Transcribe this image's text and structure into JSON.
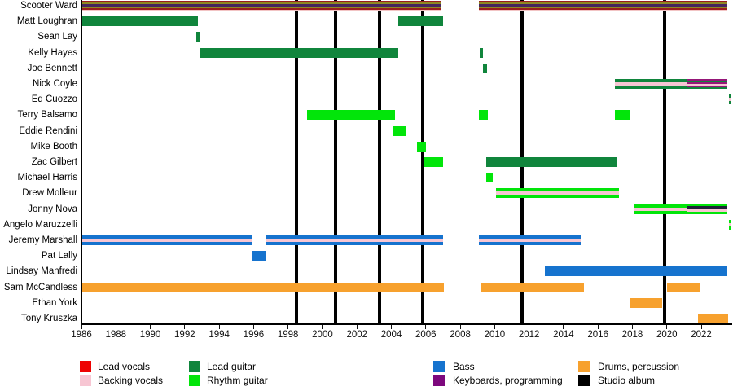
{
  "chart_data": {
    "type": "bar",
    "subtype": "gantt-band-member-timeline",
    "title": "",
    "x_axis": {
      "min": 1986,
      "max": 2023.8,
      "ticks": [
        1986,
        1988,
        1990,
        1992,
        1994,
        1996,
        1998,
        2000,
        2002,
        2004,
        2006,
        2008,
        2010,
        2012,
        2014,
        2016,
        2018,
        2020,
        2022
      ],
      "grid": false
    },
    "colors": {
      "lead_vocals": "#ee0202",
      "backing_vocals": "#f7c6d3",
      "lead_guitar": "#10853c",
      "rhythm_guitar": "#02e50a",
      "bass": "#1673ce",
      "keyboards": "#7d087d",
      "drums": "#f7a12e",
      "studio_album": "#000000",
      "scooter_dark_red": "#9b1e1e",
      "scooter_olive": "#8e8a21",
      "scooter_purple": "#46265e",
      "scooter_pink": "#f2c4c4",
      "keys_magenta": "#951678",
      "keys_dark": "#1d2336"
    },
    "patterns": {
      "lead_vocals_multi": [
        [
          "scooter_dark_red",
          2
        ],
        [
          "scooter_olive",
          2
        ],
        [
          "scooter_purple",
          3
        ],
        [
          "scooter_olive",
          2
        ],
        [
          "scooter_dark_red",
          2
        ],
        [
          "scooter_pink",
          2
        ]
      ],
      "lead_guitar": [
        [
          "lead_guitar",
          12
        ]
      ],
      "rhythm_guitar": [
        [
          "rhythm_guitar",
          12
        ]
      ],
      "lead_guitar_backing": [
        [
          "lead_guitar",
          4
        ],
        [
          "backing_vocals",
          4
        ],
        [
          "lead_guitar",
          4
        ]
      ],
      "lead_guitar_backing_keys": [
        [
          "keys_magenta",
          2
        ],
        [
          "lead_guitar",
          2
        ],
        [
          "keys_magenta",
          2
        ],
        [
          "backing_vocals",
          3
        ],
        [
          "keys_magenta",
          1
        ],
        [
          "lead_guitar",
          2
        ]
      ],
      "rhythm_guitar_backing": [
        [
          "rhythm_guitar",
          4
        ],
        [
          "backing_vocals",
          4
        ],
        [
          "rhythm_guitar",
          4
        ]
      ],
      "rhythm_guitar_backing_keys": [
        [
          "rhythm_guitar",
          2
        ],
        [
          "keys_dark",
          3
        ],
        [
          "backing_vocals",
          4
        ],
        [
          "rhythm_guitar",
          3
        ]
      ],
      "bass": [
        [
          "bass",
          12
        ]
      ],
      "bass_backing": [
        [
          "bass",
          4
        ],
        [
          "backing_vocals",
          4
        ],
        [
          "bass",
          4
        ]
      ],
      "drums": [
        [
          "drums",
          12
        ]
      ]
    },
    "legend": [
      {
        "label": "Lead vocals",
        "color_key": "lead_vocals"
      },
      {
        "label": "Backing vocals",
        "color_key": "backing_vocals"
      },
      {
        "label": "Lead guitar",
        "color_key": "lead_guitar"
      },
      {
        "label": "Rhythm guitar",
        "color_key": "rhythm_guitar"
      },
      {
        "label": "Bass",
        "color_key": "bass"
      },
      {
        "label": "Keyboards, programming",
        "color_key": "keyboards"
      },
      {
        "label": "Drums, percussion",
        "color_key": "drums"
      },
      {
        "label": "Studio album",
        "color_key": "studio_album"
      }
    ],
    "albums": {
      "label": "Studio album",
      "years": [
        1998.5,
        2000.75,
        2003.3,
        2005.8,
        2011.6,
        2019.85
      ]
    },
    "members": [
      {
        "name": "Scooter Ward",
        "segments": [
          {
            "start": 1986,
            "end": 2006.85,
            "pattern": "lead_vocals_multi"
          },
          {
            "start": 2009.1,
            "end": 2023.5,
            "pattern": "lead_vocals_multi"
          }
        ]
      },
      {
        "name": "Matt Loughran",
        "segments": [
          {
            "start": 1986,
            "end": 1992.75,
            "pattern": "lead_guitar"
          },
          {
            "start": 2004.4,
            "end": 2007.0,
            "pattern": "lead_guitar"
          }
        ]
      },
      {
        "name": "Sean Lay",
        "segments": [
          {
            "start": 1992.65,
            "end": 1992.9,
            "pattern": "lead_guitar"
          }
        ]
      },
      {
        "name": "Kelly Hayes",
        "segments": [
          {
            "start": 1992.9,
            "end": 2004.4,
            "pattern": "lead_guitar"
          },
          {
            "start": 2009.15,
            "end": 2009.3,
            "pattern": "lead_guitar"
          }
        ]
      },
      {
        "name": "Joe Bennett",
        "segments": [
          {
            "start": 2009.3,
            "end": 2009.55,
            "pattern": "lead_guitar"
          }
        ]
      },
      {
        "name": "Nick Coyle",
        "segments": [
          {
            "start": 2017.0,
            "end": 2021.15,
            "pattern": "lead_guitar_backing"
          },
          {
            "start": 2021.15,
            "end": 2023.5,
            "pattern": "lead_guitar_backing_keys"
          }
        ]
      },
      {
        "name": "Ed Cuozzo",
        "segments": [
          {
            "start": 2023.6,
            "end": 2023.75,
            "pattern": "lead_guitar_backing"
          }
        ]
      },
      {
        "name": "Terry Balsamo",
        "segments": [
          {
            "start": 1999.1,
            "end": 2004.2,
            "pattern": "rhythm_guitar"
          },
          {
            "start": 2009.1,
            "end": 2009.6,
            "pattern": "rhythm_guitar"
          },
          {
            "start": 2017.0,
            "end": 2017.85,
            "pattern": "rhythm_guitar"
          }
        ]
      },
      {
        "name": "Eddie Rendini",
        "segments": [
          {
            "start": 2004.1,
            "end": 2004.85,
            "pattern": "rhythm_guitar"
          }
        ]
      },
      {
        "name": "Mike Booth",
        "segments": [
          {
            "start": 2005.5,
            "end": 2006.0,
            "pattern": "rhythm_guitar"
          }
        ]
      },
      {
        "name": "Zac Gilbert",
        "segments": [
          {
            "start": 2005.9,
            "end": 2007.0,
            "pattern": "rhythm_guitar"
          },
          {
            "start": 2009.5,
            "end": 2017.1,
            "pattern": "lead_guitar"
          }
        ]
      },
      {
        "name": "Michael Harris",
        "segments": [
          {
            "start": 2009.5,
            "end": 2009.9,
            "pattern": "rhythm_guitar"
          }
        ]
      },
      {
        "name": "Drew Molleur",
        "segments": [
          {
            "start": 2010.1,
            "end": 2017.2,
            "pattern": "rhythm_guitar_backing"
          }
        ]
      },
      {
        "name": "Jonny Nova",
        "segments": [
          {
            "start": 2018.1,
            "end": 2021.15,
            "pattern": "rhythm_guitar_backing"
          },
          {
            "start": 2021.15,
            "end": 2023.5,
            "pattern": "rhythm_guitar_backing_keys"
          }
        ]
      },
      {
        "name": "Angelo Maruzzelli",
        "segments": [
          {
            "start": 2023.6,
            "end": 2023.75,
            "pattern": "rhythm_guitar_backing"
          }
        ]
      },
      {
        "name": "Jeremy Marshall",
        "segments": [
          {
            "start": 1986,
            "end": 1995.95,
            "pattern": "bass_backing"
          },
          {
            "start": 1996.75,
            "end": 2007.0,
            "pattern": "bass_backing"
          },
          {
            "start": 2009.1,
            "end": 2015.0,
            "pattern": "bass_backing"
          }
        ]
      },
      {
        "name": "Pat Lally",
        "segments": [
          {
            "start": 1995.95,
            "end": 1996.75,
            "pattern": "bass"
          }
        ]
      },
      {
        "name": "Lindsay Manfredi",
        "segments": [
          {
            "start": 2012.9,
            "end": 2023.5,
            "pattern": "bass"
          }
        ]
      },
      {
        "name": "Sam McCandless",
        "segments": [
          {
            "start": 1986,
            "end": 2007.05,
            "pattern": "drums"
          },
          {
            "start": 2009.2,
            "end": 2015.2,
            "pattern": "drums"
          },
          {
            "start": 2020.0,
            "end": 2021.9,
            "pattern": "drums"
          }
        ]
      },
      {
        "name": "Ethan York",
        "segments": [
          {
            "start": 2017.85,
            "end": 2019.75,
            "pattern": "drums"
          }
        ]
      },
      {
        "name": "Tony Kruszka",
        "segments": [
          {
            "start": 2021.8,
            "end": 2023.55,
            "pattern": "drums"
          }
        ]
      }
    ]
  }
}
